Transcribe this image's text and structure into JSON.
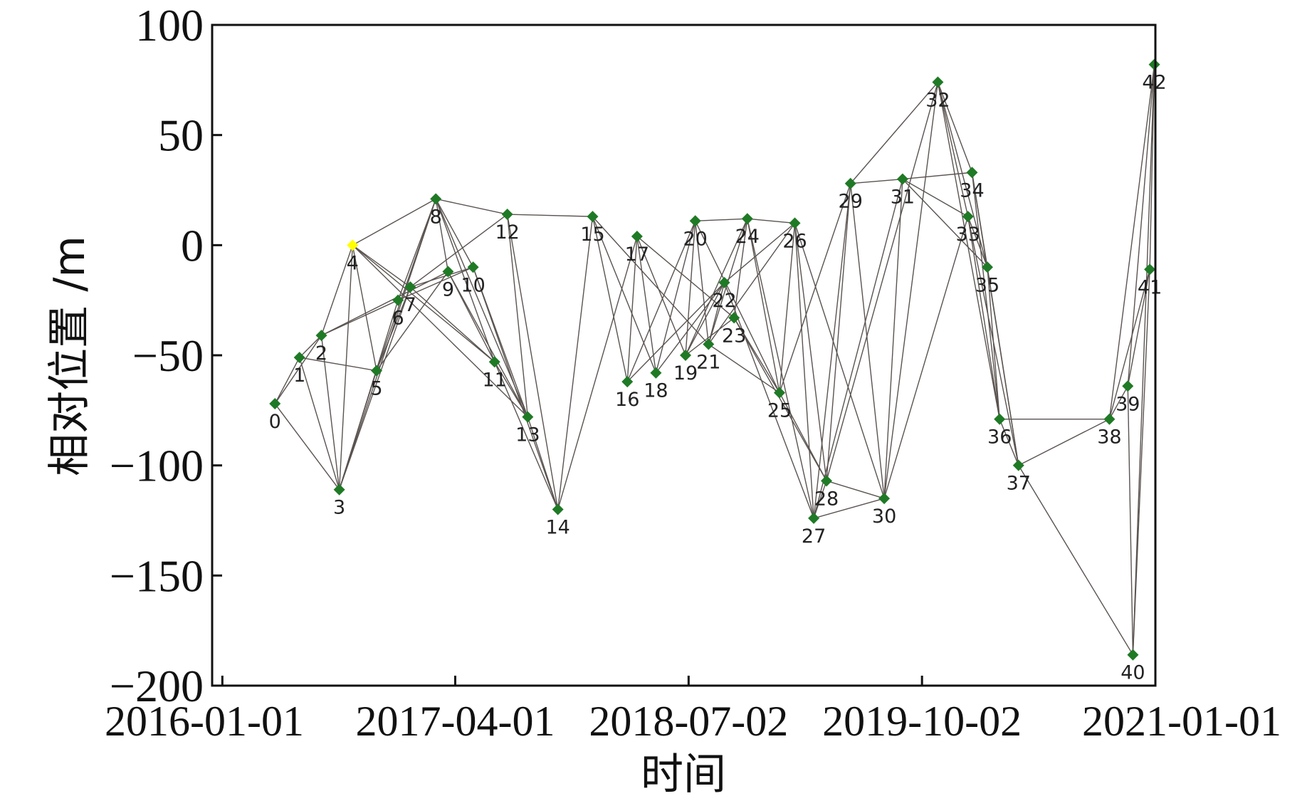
{
  "chart_data": {
    "type": "scatter",
    "title": "",
    "xlabel": "时间",
    "ylabel": "相对位置 /m",
    "xlim": [
      "2015-12-12",
      "2021-01-01"
    ],
    "ylim": [
      -200,
      100
    ],
    "x_ticks": [
      "2016-01-01",
      "2017-04-01",
      "2018-07-02",
      "2019-10-02",
      "2021-01-01"
    ],
    "y_ticks": [
      100,
      50,
      0,
      -50,
      -100,
      -150,
      -200
    ],
    "grid": false,
    "colors": {
      "point": "#1f7a25",
      "reference_point": "#ffff00",
      "edge": "#5a5350"
    },
    "reference_point": "4",
    "points": [
      {
        "label": "0",
        "x": "2016-04-13",
        "y": -72
      },
      {
        "label": "1",
        "x": "2016-05-31",
        "y": -51
      },
      {
        "label": "2",
        "x": "2016-07-13",
        "y": -41
      },
      {
        "label": "3",
        "x": "2016-08-17",
        "y": -111
      },
      {
        "label": "4",
        "x": "2016-09-12",
        "y": 0
      },
      {
        "label": "5",
        "x": "2016-10-29",
        "y": -57
      },
      {
        "label": "6",
        "x": "2016-12-10",
        "y": -25
      },
      {
        "label": "7",
        "x": "2017-01-03",
        "y": -19
      },
      {
        "label": "8",
        "x": "2017-02-22",
        "y": 21
      },
      {
        "label": "9",
        "x": "2017-03-18",
        "y": -12
      },
      {
        "label": "10",
        "x": "2017-05-06",
        "y": -10
      },
      {
        "label": "11",
        "x": "2017-06-17",
        "y": -53
      },
      {
        "label": "12",
        "x": "2017-07-12",
        "y": 14
      },
      {
        "label": "13",
        "x": "2017-08-21",
        "y": -78
      },
      {
        "label": "14",
        "x": "2017-10-19",
        "y": -120
      },
      {
        "label": "15",
        "x": "2017-12-26",
        "y": 13
      },
      {
        "label": "16",
        "x": "2018-03-04",
        "y": -62
      },
      {
        "label": "17",
        "x": "2018-03-23",
        "y": 4
      },
      {
        "label": "18",
        "x": "2018-04-29",
        "y": -58
      },
      {
        "label": "19",
        "x": "2018-06-26",
        "y": -50
      },
      {
        "label": "20",
        "x": "2018-07-15",
        "y": 11
      },
      {
        "label": "21",
        "x": "2018-08-10",
        "y": -45
      },
      {
        "label": "22",
        "x": "2018-09-10",
        "y": -17
      },
      {
        "label": "23",
        "x": "2018-09-29",
        "y": -33
      },
      {
        "label": "24",
        "x": "2018-10-25",
        "y": 12
      },
      {
        "label": "25",
        "x": "2018-12-27",
        "y": -67
      },
      {
        "label": "26",
        "x": "2019-01-26",
        "y": 10
      },
      {
        "label": "27",
        "x": "2019-03-04",
        "y": -124
      },
      {
        "label": "28",
        "x": "2019-03-29",
        "y": -107
      },
      {
        "label": "29",
        "x": "2019-05-15",
        "y": 28
      },
      {
        "label": "30",
        "x": "2019-07-20",
        "y": -115
      },
      {
        "label": "31",
        "x": "2019-08-25",
        "y": 30
      },
      {
        "label": "32",
        "x": "2019-11-02",
        "y": 74
      },
      {
        "label": "33",
        "x": "2019-12-31",
        "y": 13
      },
      {
        "label": "34",
        "x": "2020-01-08",
        "y": 33
      },
      {
        "label": "35",
        "x": "2020-02-07",
        "y": -10
      },
      {
        "label": "36",
        "x": "2020-03-02",
        "y": -79
      },
      {
        "label": "37",
        "x": "2020-04-08",
        "y": -100
      },
      {
        "label": "38",
        "x": "2020-10-03",
        "y": -79
      },
      {
        "label": "39",
        "x": "2020-11-08",
        "y": -64
      },
      {
        "label": "40",
        "x": "2020-11-18",
        "y": -186
      },
      {
        "label": "41",
        "x": "2020-12-21",
        "y": -11
      },
      {
        "label": "42",
        "x": "2020-12-30",
        "y": 82
      }
    ],
    "edges": [
      [
        "0",
        "1"
      ],
      [
        "0",
        "2"
      ],
      [
        "0",
        "3"
      ],
      [
        "1",
        "2"
      ],
      [
        "1",
        "5"
      ],
      [
        "1",
        "3"
      ],
      [
        "2",
        "4"
      ],
      [
        "2",
        "3"
      ],
      [
        "2",
        "6"
      ],
      [
        "2",
        "9"
      ],
      [
        "3",
        "4"
      ],
      [
        "3",
        "8"
      ],
      [
        "3",
        "7"
      ],
      [
        "3",
        "6"
      ],
      [
        "3",
        "5"
      ],
      [
        "4",
        "5"
      ],
      [
        "4",
        "8"
      ],
      [
        "4",
        "11"
      ],
      [
        "4",
        "13"
      ],
      [
        "4",
        "7"
      ],
      [
        "5",
        "9"
      ],
      [
        "5",
        "7"
      ],
      [
        "5",
        "8"
      ],
      [
        "6",
        "8"
      ],
      [
        "6",
        "10"
      ],
      [
        "7",
        "12"
      ],
      [
        "7",
        "11"
      ],
      [
        "7",
        "10"
      ],
      [
        "8",
        "11"
      ],
      [
        "8",
        "12"
      ],
      [
        "8",
        "13"
      ],
      [
        "8",
        "10"
      ],
      [
        "8",
        "9"
      ],
      [
        "9",
        "11"
      ],
      [
        "9",
        "13"
      ],
      [
        "10",
        "14"
      ],
      [
        "10",
        "13"
      ],
      [
        "11",
        "14"
      ],
      [
        "11",
        "13"
      ],
      [
        "12",
        "15"
      ],
      [
        "12",
        "14"
      ],
      [
        "12",
        "13"
      ],
      [
        "13",
        "14"
      ],
      [
        "14",
        "15"
      ],
      [
        "14",
        "17"
      ],
      [
        "15",
        "16"
      ],
      [
        "15",
        "18"
      ],
      [
        "15",
        "21"
      ],
      [
        "16",
        "17"
      ],
      [
        "16",
        "20"
      ],
      [
        "16",
        "22"
      ],
      [
        "17",
        "18"
      ],
      [
        "17",
        "19"
      ],
      [
        "17",
        "23"
      ],
      [
        "18",
        "20"
      ],
      [
        "18",
        "22"
      ],
      [
        "19",
        "20"
      ],
      [
        "19",
        "24"
      ],
      [
        "19",
        "22"
      ],
      [
        "19",
        "23"
      ],
      [
        "20",
        "21"
      ],
      [
        "20",
        "24"
      ],
      [
        "20",
        "25"
      ],
      [
        "21",
        "22"
      ],
      [
        "21",
        "24"
      ],
      [
        "21",
        "26"
      ],
      [
        "21",
        "25"
      ],
      [
        "22",
        "26"
      ],
      [
        "22",
        "27"
      ],
      [
        "23",
        "24"
      ],
      [
        "23",
        "25"
      ],
      [
        "23",
        "28"
      ],
      [
        "24",
        "25"
      ],
      [
        "24",
        "26"
      ],
      [
        "24",
        "27"
      ],
      [
        "25",
        "26"
      ],
      [
        "25",
        "29"
      ],
      [
        "25",
        "28"
      ],
      [
        "26",
        "27"
      ],
      [
        "26",
        "28"
      ],
      [
        "26",
        "30"
      ],
      [
        "27",
        "28"
      ],
      [
        "27",
        "29"
      ],
      [
        "27",
        "30"
      ],
      [
        "27",
        "31"
      ],
      [
        "28",
        "29"
      ],
      [
        "28",
        "30"
      ],
      [
        "28",
        "32"
      ],
      [
        "29",
        "30"
      ],
      [
        "29",
        "32"
      ],
      [
        "29",
        "31"
      ],
      [
        "30",
        "31"
      ],
      [
        "30",
        "32"
      ],
      [
        "30",
        "33"
      ],
      [
        "31",
        "34"
      ],
      [
        "31",
        "33"
      ],
      [
        "31",
        "35"
      ],
      [
        "32",
        "33"
      ],
      [
        "32",
        "34"
      ],
      [
        "32",
        "35"
      ],
      [
        "32",
        "36"
      ],
      [
        "33",
        "36"
      ],
      [
        "33",
        "37"
      ],
      [
        "33",
        "35"
      ],
      [
        "34",
        "36"
      ],
      [
        "34",
        "35"
      ],
      [
        "34",
        "37"
      ],
      [
        "35",
        "36"
      ],
      [
        "35",
        "37"
      ],
      [
        "36",
        "37"
      ],
      [
        "36",
        "38"
      ],
      [
        "37",
        "38"
      ],
      [
        "37",
        "40"
      ],
      [
        "38",
        "39"
      ],
      [
        "38",
        "41"
      ],
      [
        "38",
        "42"
      ],
      [
        "39",
        "40"
      ],
      [
        "39",
        "41"
      ],
      [
        "39",
        "42"
      ],
      [
        "40",
        "41"
      ],
      [
        "40",
        "42"
      ],
      [
        "41",
        "42"
      ]
    ]
  }
}
